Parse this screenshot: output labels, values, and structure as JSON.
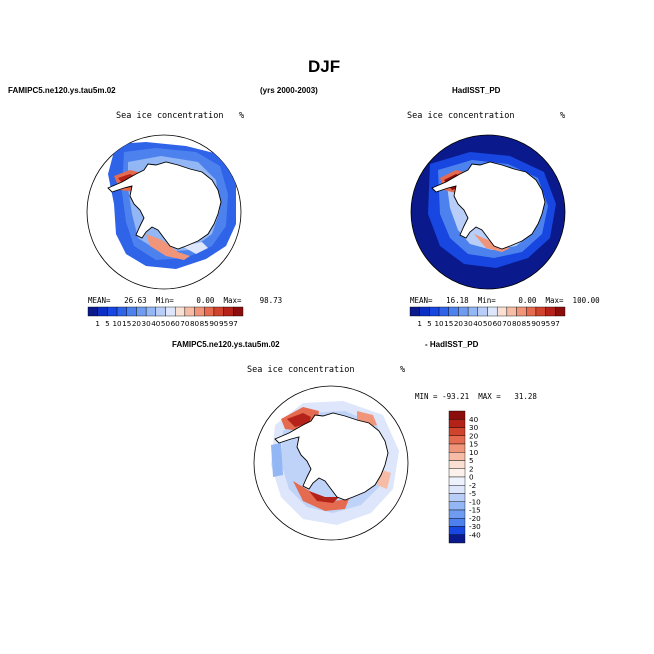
{
  "figure": {
    "title": "DJF",
    "left_header": "FAMIPC5.ne120.ys.tau5m.02",
    "center_header": "(yrs 2000-2003)",
    "right_header": "HadISST_PD",
    "diff_header_left": "FAMIPC5.ne120.ys.tau5m.02",
    "diff_header_right": "- HadISST_PD"
  },
  "panels": [
    {
      "name": "model",
      "label": "Sea ice concentration",
      "units": "%",
      "mean_text": "MEAN=   26.63  Min=     0.00  Max=    98.73"
    },
    {
      "name": "obs",
      "label": "Sea ice concentration",
      "units": "%",
      "mean_text": "MEAN=   16.18  Min=     0.00  Max=  100.00"
    },
    {
      "name": "diff",
      "label": "Sea ice concentration",
      "units": "%",
      "minmax_text": "MIN = -93.21  MAX =   31.28"
    }
  ],
  "colorbar_abs": {
    "labels": [
      "1",
      "5",
      "10",
      "15",
      "20",
      "30",
      "40",
      "50",
      "60",
      "70",
      "80",
      "85",
      "90",
      "95",
      "97"
    ],
    "colors": [
      "#0a1a8c",
      "#0c2fc4",
      "#1746e0",
      "#2f63e8",
      "#4d82ee",
      "#6f9cf1",
      "#93b6f4",
      "#b8cdf7",
      "#dde6fa",
      "#fadfd3",
      "#f6bca6",
      "#f0957a",
      "#e46b4f",
      "#d0432c",
      "#b5221a",
      "#8c0e0c"
    ]
  },
  "colorbar_diff": {
    "labels": [
      "40",
      "30",
      "20",
      "15",
      "10",
      "5",
      "2",
      "0",
      "-2",
      "-5",
      "-10",
      "-15",
      "-20",
      "-30",
      "-40"
    ],
    "colors": [
      "#8c0e0c",
      "#b5221a",
      "#d0432c",
      "#e46b4f",
      "#f0957a",
      "#f6bca6",
      "#fadfd3",
      "#fdf1ec",
      "#eef2fc",
      "#dde6fa",
      "#b8cdf7",
      "#93b6f4",
      "#6f9cf1",
      "#4d82ee",
      "#1746e0",
      "#0a1a8c"
    ]
  }
}
